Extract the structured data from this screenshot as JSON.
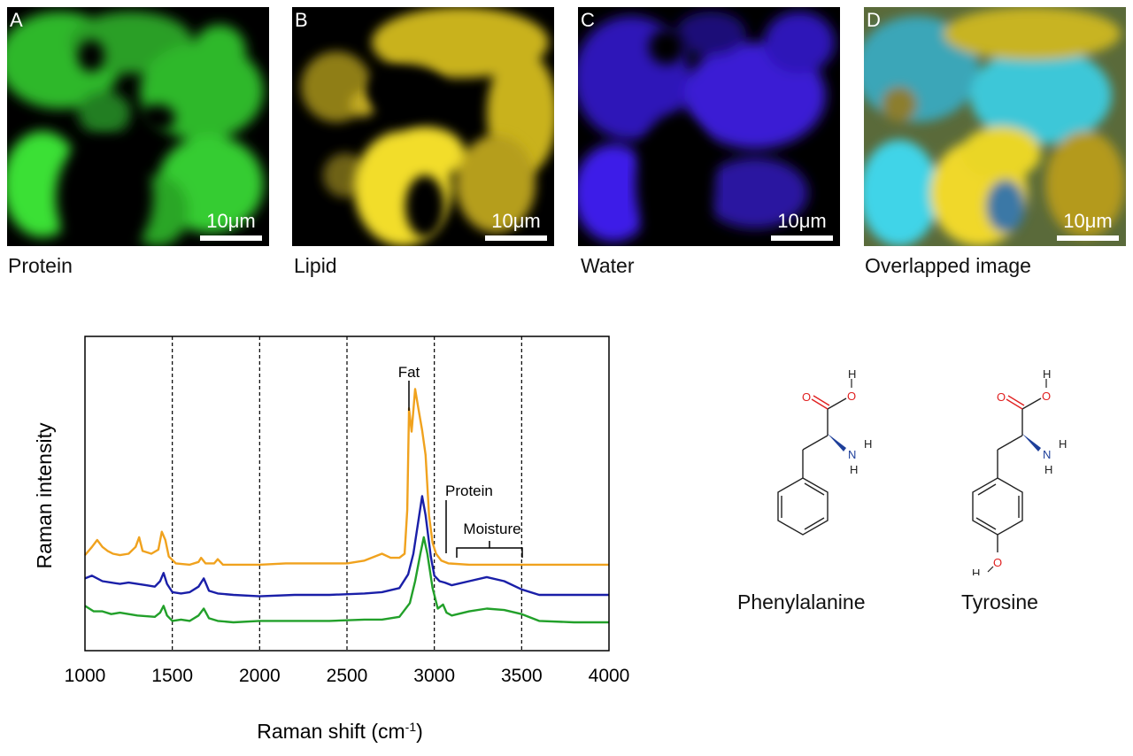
{
  "panels": [
    {
      "letter": "A",
      "caption": "Protein",
      "scale_label": "10μm",
      "color": "#2fd02a"
    },
    {
      "letter": "B",
      "caption": "Lipid",
      "scale_label": "10μm",
      "color": "#e6d21e"
    },
    {
      "letter": "C",
      "caption": "Water",
      "scale_label": "10μm",
      "color": "#3a1fe0"
    },
    {
      "letter": "D",
      "caption": "Overlapped image",
      "scale_label": "10μm",
      "color": "#3ec7d8"
    }
  ],
  "chart_data": {
    "type": "line",
    "xlabel": "Raman shift (cm",
    "xlabel_sup": "-1",
    "xlabel_close": ")",
    "ylabel": "Raman intensity",
    "xlim": [
      1000,
      4000
    ],
    "xticks": [
      "1000",
      "1500",
      "2000",
      "2500",
      "3000",
      "3500",
      "4000"
    ],
    "dashed_lines": [
      1500,
      2000,
      2500,
      3000,
      3500
    ],
    "annotations": {
      "fat": "Fat",
      "protein": "Protein",
      "moisture": "Moisture"
    },
    "series": [
      {
        "color": "#f0a21e",
        "baseline": 0.42,
        "points": [
          [
            1000,
            0.49
          ],
          [
            1040,
            0.55
          ],
          [
            1070,
            0.6
          ],
          [
            1100,
            0.55
          ],
          [
            1130,
            0.52
          ],
          [
            1160,
            0.5
          ],
          [
            1200,
            0.49
          ],
          [
            1250,
            0.5
          ],
          [
            1290,
            0.55
          ],
          [
            1310,
            0.62
          ],
          [
            1330,
            0.52
          ],
          [
            1380,
            0.5
          ],
          [
            1420,
            0.53
          ],
          [
            1440,
            0.66
          ],
          [
            1460,
            0.6
          ],
          [
            1480,
            0.48
          ],
          [
            1520,
            0.43
          ],
          [
            1600,
            0.42
          ],
          [
            1650,
            0.44
          ],
          [
            1665,
            0.47
          ],
          [
            1690,
            0.43
          ],
          [
            1740,
            0.43
          ],
          [
            1760,
            0.46
          ],
          [
            1790,
            0.42
          ],
          [
            2000,
            0.42
          ],
          [
            2150,
            0.43
          ],
          [
            2300,
            0.43
          ],
          [
            2500,
            0.43
          ],
          [
            2600,
            0.45
          ],
          [
            2700,
            0.5
          ],
          [
            2750,
            0.47
          ],
          [
            2800,
            0.47
          ],
          [
            2830,
            0.5
          ],
          [
            2845,
            0.82
          ],
          [
            2855,
            1.56
          ],
          [
            2870,
            1.39
          ],
          [
            2890,
            1.7
          ],
          [
            2910,
            1.55
          ],
          [
            2930,
            1.4
          ],
          [
            2950,
            1.22
          ],
          [
            2970,
            0.78
          ],
          [
            2990,
            0.58
          ],
          [
            3010,
            0.5
          ],
          [
            3040,
            0.45
          ],
          [
            3080,
            0.43
          ],
          [
            3200,
            0.42
          ],
          [
            3500,
            0.42
          ],
          [
            4000,
            0.42
          ]
        ]
      },
      {
        "color": "#1a1fa8",
        "baseline": 0.2,
        "points": [
          [
            1000,
            0.32
          ],
          [
            1040,
            0.34
          ],
          [
            1100,
            0.3
          ],
          [
            1150,
            0.29
          ],
          [
            1200,
            0.28
          ],
          [
            1250,
            0.29
          ],
          [
            1300,
            0.28
          ],
          [
            1350,
            0.27
          ],
          [
            1400,
            0.26
          ],
          [
            1430,
            0.3
          ],
          [
            1450,
            0.36
          ],
          [
            1470,
            0.28
          ],
          [
            1500,
            0.22
          ],
          [
            1550,
            0.21
          ],
          [
            1600,
            0.22
          ],
          [
            1650,
            0.26
          ],
          [
            1680,
            0.32
          ],
          [
            1710,
            0.23
          ],
          [
            1760,
            0.21
          ],
          [
            1850,
            0.2
          ],
          [
            2000,
            0.19
          ],
          [
            2200,
            0.2
          ],
          [
            2400,
            0.2
          ],
          [
            2600,
            0.21
          ],
          [
            2700,
            0.22
          ],
          [
            2800,
            0.25
          ],
          [
            2850,
            0.35
          ],
          [
            2880,
            0.5
          ],
          [
            2910,
            0.75
          ],
          [
            2930,
            0.92
          ],
          [
            2950,
            0.78
          ],
          [
            2980,
            0.48
          ],
          [
            3000,
            0.34
          ],
          [
            3030,
            0.3
          ],
          [
            3060,
            0.29
          ],
          [
            3100,
            0.27
          ],
          [
            3200,
            0.3
          ],
          [
            3300,
            0.33
          ],
          [
            3400,
            0.3
          ],
          [
            3500,
            0.24
          ],
          [
            3600,
            0.2
          ],
          [
            3800,
            0.2
          ],
          [
            4000,
            0.2
          ]
        ]
      },
      {
        "color": "#22a02a",
        "baseline": 0.0,
        "points": [
          [
            1000,
            0.12
          ],
          [
            1050,
            0.08
          ],
          [
            1100,
            0.08
          ],
          [
            1150,
            0.06
          ],
          [
            1200,
            0.07
          ],
          [
            1300,
            0.05
          ],
          [
            1400,
            0.04
          ],
          [
            1430,
            0.07
          ],
          [
            1450,
            0.12
          ],
          [
            1470,
            0.05
          ],
          [
            1500,
            0.01
          ],
          [
            1550,
            0.02
          ],
          [
            1600,
            0.01
          ],
          [
            1650,
            0.05
          ],
          [
            1680,
            0.1
          ],
          [
            1710,
            0.03
          ],
          [
            1760,
            0.01
          ],
          [
            1850,
            0.0
          ],
          [
            2000,
            0.01
          ],
          [
            2200,
            0.01
          ],
          [
            2400,
            0.01
          ],
          [
            2600,
            0.02
          ],
          [
            2700,
            0.02
          ],
          [
            2800,
            0.04
          ],
          [
            2860,
            0.14
          ],
          [
            2890,
            0.3
          ],
          [
            2920,
            0.5
          ],
          [
            2940,
            0.62
          ],
          [
            2960,
            0.5
          ],
          [
            2990,
            0.25
          ],
          [
            3020,
            0.1
          ],
          [
            3050,
            0.13
          ],
          [
            3070,
            0.07
          ],
          [
            3100,
            0.05
          ],
          [
            3200,
            0.08
          ],
          [
            3300,
            0.1
          ],
          [
            3400,
            0.09
          ],
          [
            3500,
            0.06
          ],
          [
            3600,
            0.01
          ],
          [
            3800,
            0.0
          ],
          [
            4000,
            0.0
          ]
        ]
      }
    ]
  },
  "molecules": [
    {
      "name": "Phenylalanine"
    },
    {
      "name": "Tyrosine"
    }
  ],
  "atom_labels": {
    "O": "O",
    "H": "H",
    "N": "N"
  },
  "atom_colors": {
    "oxygen": "#e02020",
    "nitrogen": "#1e3f9a",
    "bond": "#222222"
  }
}
